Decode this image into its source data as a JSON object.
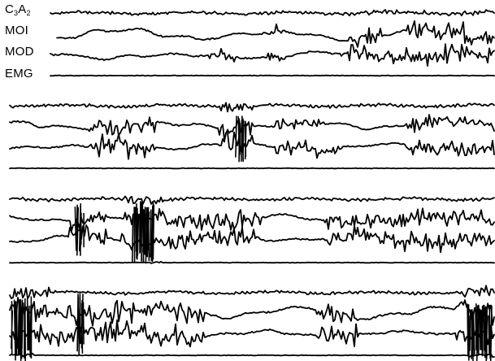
{
  "channel_labels": {
    "c3": "C",
    "c3_sub": "3",
    "a2": "A",
    "a2_sub": "2",
    "moi": "MOI",
    "mod": "MOD",
    "emg": "EMG"
  },
  "colors": {
    "trace": "#000000",
    "background": "#ffffff"
  }
}
